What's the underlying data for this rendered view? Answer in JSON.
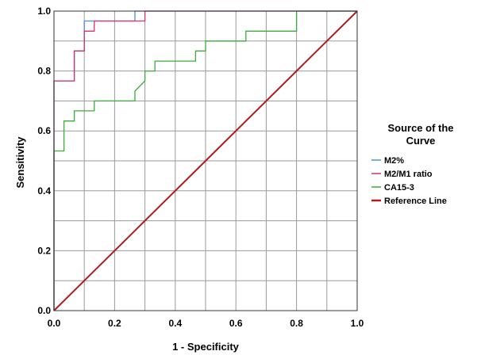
{
  "chart_data": {
    "type": "line",
    "xlabel": "1 - Specificity",
    "ylabel": "Sensitivity",
    "xlim": [
      0,
      1
    ],
    "ylim": [
      0,
      1
    ],
    "xticks": [
      0.0,
      0.2,
      0.4,
      0.6,
      0.8,
      1.0
    ],
    "yticks": [
      0.0,
      0.2,
      0.4,
      0.6,
      0.8,
      1.0
    ],
    "xtick_labels": [
      "0.0",
      "0.2",
      "0.4",
      "0.6",
      "0.8",
      "1.0"
    ],
    "ytick_labels": [
      "0.0",
      "0.2",
      "0.4",
      "0.6",
      "0.8",
      "1.0"
    ],
    "grid": true,
    "legend": {
      "title_lines": [
        "Source of the",
        "Curve"
      ],
      "placement": "right"
    },
    "series": [
      {
        "name": "M2%",
        "color": "#4a90d9",
        "x": [
          0,
          0,
          0.067,
          0.067,
          0.1,
          0.1,
          0.133,
          0.133,
          0.267,
          0.267,
          0.3,
          0.3,
          1.0
        ],
        "y": [
          0,
          0.767,
          0.767,
          0.867,
          0.867,
          0.967,
          0.967,
          0.967,
          0.967,
          1.0,
          1.0,
          1.0,
          1.0
        ]
      },
      {
        "name": "M2/M1 ratio",
        "color": "#d6336c",
        "x": [
          0,
          0,
          0.067,
          0.067,
          0.1,
          0.1,
          0.133,
          0.133,
          0.3,
          0.3,
          1.0
        ],
        "y": [
          0,
          0.767,
          0.767,
          0.867,
          0.867,
          0.933,
          0.933,
          0.967,
          0.967,
          1.0,
          1.0
        ]
      },
      {
        "name": "CA15-3",
        "color": "#3cab3c",
        "x": [
          0,
          0,
          0.033,
          0.033,
          0.067,
          0.067,
          0.133,
          0.133,
          0.267,
          0.267,
          0.3,
          0.3,
          0.333,
          0.333,
          0.467,
          0.467,
          0.5,
          0.5,
          0.533,
          0.533,
          0.633,
          0.633,
          0.8,
          0.8,
          1.0
        ],
        "y": [
          0,
          0.533,
          0.533,
          0.633,
          0.633,
          0.667,
          0.667,
          0.7,
          0.7,
          0.733,
          0.767,
          0.8,
          0.8,
          0.833,
          0.833,
          0.867,
          0.867,
          0.9,
          0.9,
          0.9,
          0.9,
          0.933,
          0.933,
          1.0,
          1.0
        ]
      },
      {
        "name": "Reference Line",
        "color": "#b01c1c",
        "x": [
          0,
          1
        ],
        "y": [
          0,
          1
        ]
      }
    ]
  }
}
